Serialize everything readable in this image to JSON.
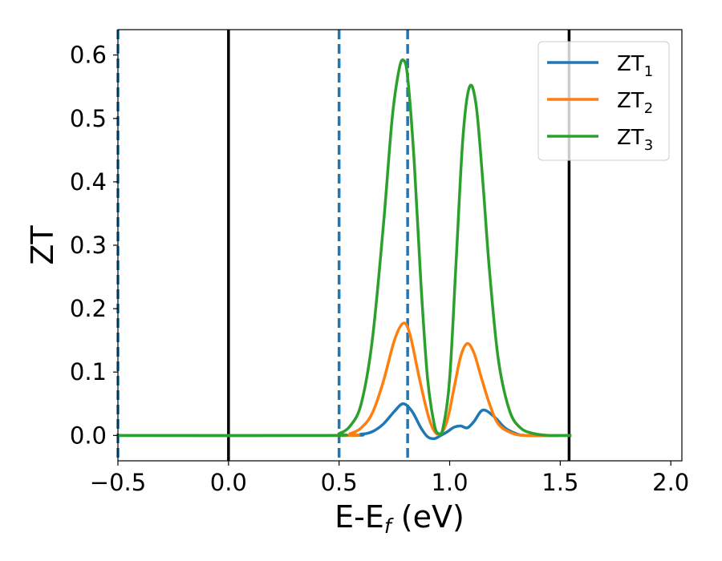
{
  "chart_data": {
    "type": "line",
    "title": "",
    "xlabel": {
      "main": "E-E",
      "sub": "f",
      "suffix": " (eV)"
    },
    "ylabel": "ZT",
    "xlim": [
      -0.5,
      2.05
    ],
    "ylim": [
      -0.04,
      0.64
    ],
    "xticks": [
      -0.5,
      0.0,
      0.5,
      1.0,
      1.5,
      2.0
    ],
    "xtick_labels": [
      "−0.5",
      "0.0",
      "0.5",
      "1.0",
      "1.5",
      "2.0"
    ],
    "yticks": [
      0.0,
      0.1,
      0.2,
      0.3,
      0.4,
      0.5,
      0.6
    ],
    "ytick_labels": [
      "0.0",
      "0.1",
      "0.2",
      "0.3",
      "0.4",
      "0.5",
      "0.6"
    ],
    "grid": false,
    "legend_position": "top-right",
    "vertical_lines": [
      {
        "x": -0.5,
        "color": "#1f77b4",
        "style": "dashed"
      },
      {
        "x": 0.0,
        "color": "#000000",
        "style": "solid"
      },
      {
        "x": 0.5,
        "color": "#1f77b4",
        "style": "dashed"
      },
      {
        "x": 0.81,
        "color": "#1f77b4",
        "style": "dashed"
      },
      {
        "x": 1.54,
        "color": "#000000",
        "style": "solid"
      }
    ],
    "series": [
      {
        "name": "ZT",
        "sub": "1",
        "color": "#1f77b4",
        "x": [
          -0.5,
          0.5,
          0.6,
          0.65,
          0.7,
          0.75,
          0.79,
          0.83,
          0.87,
          0.9,
          0.93,
          0.96,
          0.99,
          1.02,
          1.05,
          1.08,
          1.11,
          1.15,
          1.2,
          1.25,
          1.3,
          1.35,
          1.55
        ],
        "y": [
          0.0,
          0.0,
          0.002,
          0.006,
          0.018,
          0.038,
          0.05,
          0.038,
          0.012,
          -0.002,
          -0.005,
          0.0,
          0.006,
          0.013,
          0.015,
          0.012,
          0.022,
          0.04,
          0.03,
          0.012,
          0.003,
          0.0,
          0.0
        ]
      },
      {
        "name": "ZT",
        "sub": "2",
        "color": "#ff7f0e",
        "x": [
          -0.5,
          0.5,
          0.55,
          0.6,
          0.65,
          0.7,
          0.75,
          0.79,
          0.82,
          0.86,
          0.9,
          0.93,
          0.96,
          0.99,
          1.02,
          1.05,
          1.08,
          1.11,
          1.14,
          1.18,
          1.22,
          1.28,
          1.35,
          1.55
        ],
        "y": [
          0.0,
          0.0,
          0.003,
          0.012,
          0.035,
          0.085,
          0.15,
          0.177,
          0.16,
          0.095,
          0.035,
          0.007,
          0.003,
          0.025,
          0.075,
          0.125,
          0.145,
          0.13,
          0.095,
          0.05,
          0.018,
          0.004,
          0.0,
          0.0
        ]
      },
      {
        "name": "ZT",
        "sub": "3",
        "color": "#2ca02c",
        "x": [
          -0.5,
          0.45,
          0.5,
          0.55,
          0.6,
          0.65,
          0.7,
          0.74,
          0.77,
          0.79,
          0.81,
          0.84,
          0.87,
          0.9,
          0.93,
          0.95,
          0.97,
          1.0,
          1.03,
          1.06,
          1.09,
          1.12,
          1.15,
          1.18,
          1.22,
          1.27,
          1.32,
          1.38,
          1.45,
          1.55
        ],
        "y": [
          0.0,
          0.0,
          0.003,
          0.015,
          0.05,
          0.15,
          0.33,
          0.5,
          0.575,
          0.592,
          0.565,
          0.43,
          0.24,
          0.09,
          0.018,
          0.003,
          0.012,
          0.09,
          0.28,
          0.47,
          0.55,
          0.52,
          0.4,
          0.26,
          0.12,
          0.04,
          0.012,
          0.003,
          0.0,
          0.0
        ]
      }
    ]
  }
}
